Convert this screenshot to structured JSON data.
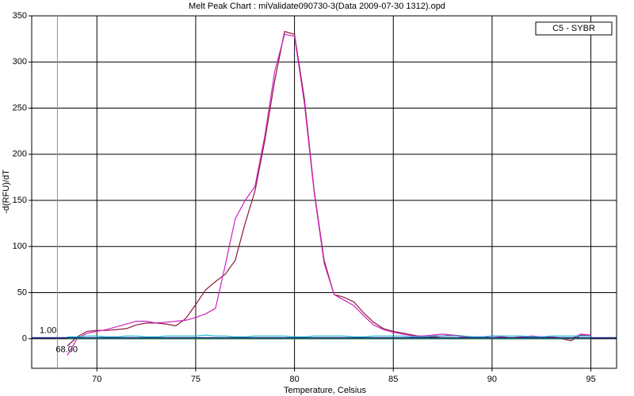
{
  "chart_data": {
    "type": "line",
    "title": "Melt Peak Chart : miValidate090730-3(Data 2009-07-30 1312).opd",
    "xlabel": "Temperature, Celsius",
    "ylabel": "-d(RFU)/dT",
    "x": [
      68.5,
      69,
      69.5,
      70,
      70.5,
      71,
      71.5,
      72,
      72.5,
      73,
      73.5,
      74,
      74.5,
      75,
      75.5,
      76,
      76.5,
      77,
      77.5,
      78,
      78.5,
      79,
      79.5,
      80,
      80.5,
      81,
      81.5,
      82,
      82.5,
      83,
      83.5,
      84,
      84.5,
      85,
      85.5,
      86,
      86.5,
      87,
      87.5,
      88,
      88.5,
      89,
      89.5,
      90,
      90.5,
      91,
      91.5,
      92,
      92.5,
      93,
      93.5,
      94,
      94.5,
      95
    ],
    "series": [
      {
        "color": "#8b1a3a",
        "values": [
          -8,
          2,
          8,
          9,
          9,
          10,
          11,
          15,
          17,
          17,
          16,
          14,
          22,
          37,
          53,
          62,
          70,
          85,
          125,
          160,
          215,
          280,
          333,
          330,
          260,
          160,
          85,
          48,
          45,
          40,
          28,
          18,
          11,
          8,
          6,
          4,
          2,
          2,
          3,
          4,
          3,
          2,
          1,
          3,
          2,
          1,
          2,
          2,
          2,
          1,
          0,
          -2,
          4,
          3
        ]
      },
      {
        "color": "#d020c0",
        "values": [
          -18,
          0,
          6,
          8,
          10,
          13,
          16,
          19,
          19,
          17,
          18,
          19,
          20,
          23,
          27,
          33,
          80,
          130,
          150,
          165,
          220,
          290,
          330,
          328,
          255,
          158,
          82,
          48,
          42,
          36,
          25,
          15,
          10,
          7,
          5,
          3,
          3,
          4,
          5,
          4,
          2,
          2,
          2,
          3,
          2,
          1,
          2,
          3,
          2,
          2,
          1,
          0,
          5,
          4
        ]
      },
      {
        "color": "#2040c0",
        "values": [
          1,
          1,
          1,
          1,
          1,
          1,
          1,
          1,
          1,
          1,
          1,
          1,
          1,
          1,
          1,
          1,
          1,
          1,
          1,
          1,
          1,
          1,
          1,
          1,
          1,
          1,
          1,
          1,
          1,
          1,
          1,
          1,
          1,
          1,
          1,
          1,
          1,
          1,
          1,
          1,
          1,
          1,
          1,
          1,
          1,
          1,
          1,
          1,
          1,
          1,
          1,
          1,
          1,
          1
        ]
      },
      {
        "color": "#20c0d0",
        "values": [
          2,
          2,
          3,
          3,
          2,
          2,
          3,
          3,
          2,
          2,
          3,
          3,
          3,
          3,
          4,
          3,
          3,
          2,
          2,
          3,
          3,
          3,
          3,
          2,
          2,
          3,
          3,
          3,
          3,
          2,
          2,
          3,
          3,
          3,
          3,
          2,
          2,
          3,
          3,
          3,
          3,
          2,
          2,
          3,
          3,
          3,
          3,
          2,
          2,
          3,
          3,
          3,
          3,
          3
        ]
      },
      {
        "color": "#209040",
        "values": [
          0,
          0,
          0,
          0,
          0,
          0,
          0,
          0,
          0,
          0,
          0,
          0,
          0,
          0,
          0,
          0,
          0,
          0,
          0,
          0,
          0,
          0,
          0,
          0,
          0,
          0,
          0,
          0,
          0,
          0,
          0,
          0,
          0,
          0,
          0,
          0,
          0,
          0,
          0,
          0,
          0,
          0,
          0,
          0,
          0,
          0,
          0,
          0,
          0,
          0,
          0,
          0,
          0,
          0
        ]
      }
    ],
    "xlim": [
      66.7,
      96.3
    ],
    "ylim": [
      -32,
      350
    ],
    "xticks": [
      70,
      75,
      80,
      85,
      90,
      95
    ],
    "yticks": [
      0,
      50,
      100,
      150,
      200,
      250,
      300,
      350
    ],
    "grid": true,
    "threshold": {
      "value": 1,
      "label": "1.00"
    },
    "start_line": {
      "value": 68,
      "label": "68.00"
    },
    "legend": {
      "entries": [
        "C5 - SYBR"
      ],
      "position": "upper right"
    }
  }
}
